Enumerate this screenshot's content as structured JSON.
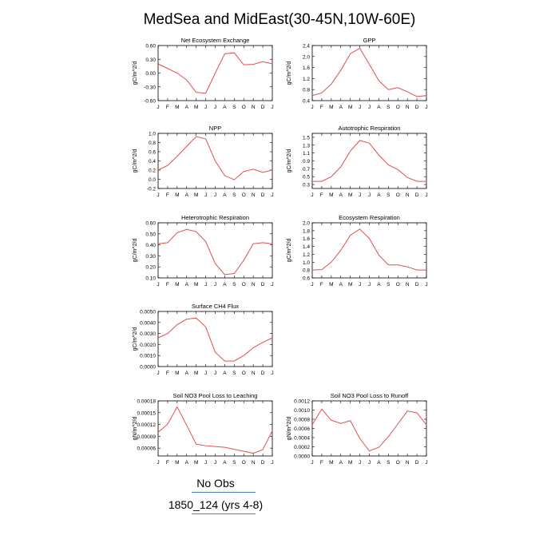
{
  "title": "MedSea and MidEast(30-45N,10W-60E)",
  "month_labels": [
    "J",
    "F",
    "M",
    "A",
    "M",
    "J",
    "J",
    "A",
    "S",
    "O",
    "N",
    "D",
    "J"
  ],
  "legend": {
    "items": [
      {
        "label": "No Obs",
        "color": "#4f7fbf"
      },
      {
        "label": "1850_124 (yrs 4-8)",
        "color": "#e05050"
      }
    ]
  },
  "chart_data": [
    {
      "type": "line",
      "title": "Net Ecosystem Exchange",
      "ylabel": "gC/m^2/d",
      "ylim": [
        -0.6,
        0.6
      ],
      "yticks": [
        "-0.60",
        "-0.30",
        "0.00",
        "0.30",
        "0.60"
      ],
      "series": [
        {
          "values": [
            0.2,
            0.1,
            0.0,
            -0.15,
            -0.42,
            -0.44,
            0.0,
            0.42,
            0.44,
            0.18,
            0.19,
            0.25,
            0.2
          ]
        }
      ]
    },
    {
      "type": "line",
      "title": "GPP",
      "ylabel": "gC/m^2/d",
      "ylim": [
        0.4,
        2.4
      ],
      "yticks": [
        "0.4",
        "0.8",
        "1.2",
        "1.6",
        "2.0",
        "2.4"
      ],
      "series": [
        {
          "values": [
            0.58,
            0.68,
            1.0,
            1.5,
            2.1,
            2.3,
            1.72,
            1.12,
            0.8,
            0.87,
            0.72,
            0.55,
            0.58
          ]
        }
      ]
    },
    {
      "type": "line",
      "title": "NPP",
      "ylabel": "gC/m^2/d",
      "ylim": [
        -0.2,
        1.0
      ],
      "yticks": [
        "-0.2",
        "0.0",
        "0.2",
        "0.4",
        "0.6",
        "0.8",
        "1.0"
      ],
      "series": [
        {
          "values": [
            0.2,
            0.3,
            0.5,
            0.72,
            0.93,
            0.88,
            0.4,
            0.08,
            -0.01,
            0.17,
            0.22,
            0.15,
            0.2
          ]
        }
      ]
    },
    {
      "type": "line",
      "title": "Autotrophic Respiration",
      "ylabel": "gC/m^2/d",
      "ylim": [
        0.2,
        1.6
      ],
      "yticks": [
        "0.3",
        "0.5",
        "0.7",
        "0.9",
        "1.1",
        "1.3",
        "1.5"
      ],
      "series": [
        {
          "values": [
            0.38,
            0.38,
            0.5,
            0.75,
            1.15,
            1.42,
            1.35,
            1.05,
            0.8,
            0.68,
            0.48,
            0.38,
            0.38
          ]
        }
      ]
    },
    {
      "type": "line",
      "title": "Heterotrophic Respiration",
      "ylabel": "gC/m^2/d",
      "ylim": [
        0.1,
        0.6
      ],
      "yticks": [
        "0.10",
        "0.20",
        "0.30",
        "0.40",
        "0.50",
        "0.60"
      ],
      "series": [
        {
          "values": [
            0.41,
            0.42,
            0.51,
            0.54,
            0.52,
            0.43,
            0.23,
            0.13,
            0.14,
            0.26,
            0.41,
            0.42,
            0.41
          ]
        }
      ]
    },
    {
      "type": "line",
      "title": "Ecosystem Respiration",
      "ylabel": "gC/m^2/d",
      "ylim": [
        0.6,
        2.0
      ],
      "yticks": [
        "0.6",
        "0.8",
        "1.0",
        "1.2",
        "1.4",
        "1.6",
        "1.8",
        "2.0"
      ],
      "series": [
        {
          "values": [
            0.8,
            0.81,
            1.0,
            1.3,
            1.68,
            1.84,
            1.6,
            1.18,
            0.93,
            0.93,
            0.88,
            0.8,
            0.8
          ]
        }
      ]
    },
    {
      "type": "line",
      "title": "Surface CH4 Flux",
      "ylabel": "gC/m^2/d",
      "ylim": [
        0.0,
        0.005
      ],
      "yticks": [
        "0.0000",
        "0.0010",
        "0.0020",
        "0.0030",
        "0.0040",
        "0.0050"
      ],
      "series": [
        {
          "values": [
            0.0026,
            0.003,
            0.0038,
            0.0043,
            0.0044,
            0.0036,
            0.0013,
            0.0005,
            0.0005,
            0.001,
            0.0017,
            0.0022,
            0.0026
          ]
        }
      ]
    },
    {
      "type": "line",
      "title": "Soil NO3 Pool Loss to Leaching",
      "ylabel": "gN/m^2/d",
      "ylim": [
        4e-05,
        0.00018
      ],
      "yticks": [
        "0.00006",
        "0.00009",
        "0.00012",
        "0.00015",
        "0.00018"
      ],
      "series": [
        {
          "values": [
            0.0001,
            0.000121,
            0.000165,
            0.000118,
            7e-05,
            6.6e-05,
            6.4e-05,
            6.2e-05,
            5.7e-05,
            5.2e-05,
            4.7e-05,
            5.6e-05,
            0.000104
          ]
        }
      ]
    },
    {
      "type": "line",
      "title": "Soil NO3 Pool Loss to Runoff",
      "ylabel": "gN/m^2/d",
      "ylim": [
        0.0,
        0.0012
      ],
      "yticks": [
        "0.0000",
        "0.0002",
        "0.0004",
        "0.0006",
        "0.0008",
        "0.0010",
        "0.0012"
      ],
      "series": [
        {
          "values": [
            0.00068,
            0.00102,
            0.00078,
            0.00071,
            0.00077,
            0.00038,
            0.00011,
            0.00019,
            0.00042,
            0.0007,
            0.00098,
            0.00094,
            0.00068
          ]
        }
      ]
    }
  ]
}
